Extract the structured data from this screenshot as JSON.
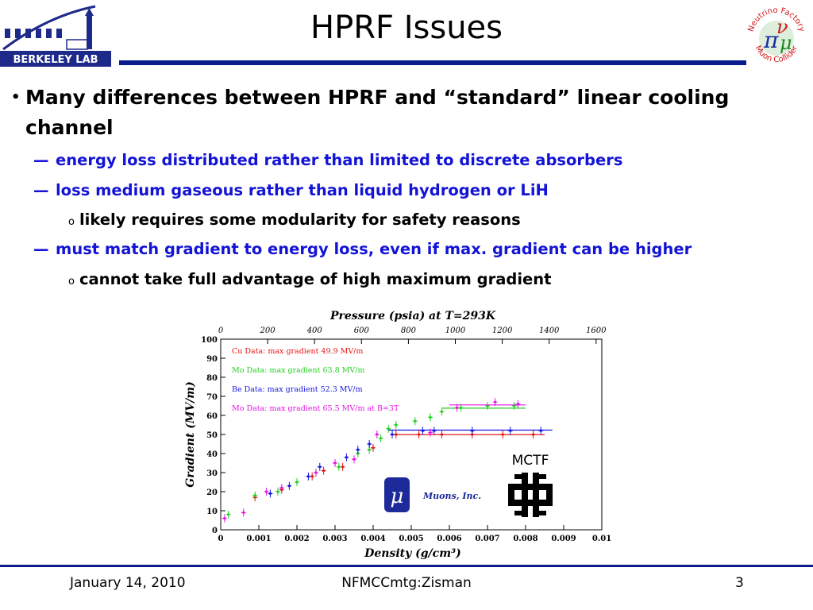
{
  "logos": {
    "left": {
      "text": "BERKELEY LAB",
      "icon": "berkeley-lab-logo-icon"
    },
    "right": {
      "text_top": "Neutrino Factory",
      "text_bottom": "Muon Collider",
      "icon": "nfmcc-logo-icon"
    }
  },
  "slide": {
    "title": "HPRF Issues",
    "bullet_main": "Many differences between HPRF and “standard” linear cooling channel",
    "sub1": "energy loss distributed rather than limited to discrete absorbers",
    "sub2": "loss medium gaseous rather than liquid hydrogen or LiH",
    "sub2a": "likely requires some modularity for safety reasons",
    "sub3": "must match gradient to energy loss, even if max. gradient can be higher",
    "sub3a": "cannot take full advantage of high maximum gradient",
    "dash": "—",
    "circle": "o",
    "bullet": "•"
  },
  "figure": {
    "mctf_label": "MCTF",
    "muons_label": "Muons, Inc.",
    "mu_symbol": "μ"
  },
  "footer": {
    "date": "January 14, 2010",
    "center": "NFMCCmtg:Zisman",
    "page": "3"
  },
  "colors": {
    "title_rule": "#0b1c8c",
    "subbullet": "#1313d6"
  },
  "chart_data": {
    "type": "scatter",
    "title": "Pressure (psia) at T=293K",
    "xlabel": "Density (g/cm³)",
    "ylabel": "Gradient (MV/m)",
    "top_axis_ticks": [
      "0",
      "200",
      "400",
      "600",
      "800",
      "1000",
      "1200",
      "1400",
      "1600"
    ],
    "x_ticks": [
      "0",
      "0.001",
      "0.002",
      "0.003",
      "0.004",
      "0.005",
      "0.006",
      "0.007",
      "0.008",
      "0.009",
      "0.01"
    ],
    "y_ticks": [
      "0",
      "10",
      "20",
      "30",
      "40",
      "50",
      "60",
      "70",
      "80",
      "90",
      "100"
    ],
    "xlim": [
      0,
      0.01
    ],
    "ylim": [
      0,
      100
    ],
    "legend": [
      {
        "text": "Cu Data: max gradient 49.9 MV/m",
        "color": "#e81414"
      },
      {
        "text": "Mo Data: max gradient 63.8 MV/m",
        "color": "#1fd11f"
      },
      {
        "text": "Be Data: max gradient 52.3 MV/m",
        "color": "#1414e0"
      },
      {
        "text": "Mo Data: max gradient 65.5 MV/m at B=3T",
        "color": "#e414e4"
      }
    ],
    "series": [
      {
        "name": "Cu Data: max gradient 49.9 MV/m",
        "color": "#e81414",
        "points": [
          [
            0.0009,
            17
          ],
          [
            0.0016,
            21
          ],
          [
            0.0024,
            28
          ],
          [
            0.0027,
            31
          ],
          [
            0.0032,
            33
          ],
          [
            0.004,
            43
          ],
          [
            0.0046,
            50
          ],
          [
            0.0052,
            50
          ],
          [
            0.0058,
            50
          ],
          [
            0.0066,
            50
          ],
          [
            0.0074,
            50
          ],
          [
            0.0082,
            50
          ]
        ],
        "flat": {
          "x0": 0.0045,
          "x1": 0.0085,
          "y": 49.9
        }
      },
      {
        "name": "Mo Data: max gradient 63.8 MV/m",
        "color": "#1fd11f",
        "points": [
          [
            0.0002,
            8
          ],
          [
            0.0009,
            18
          ],
          [
            0.0015,
            20
          ],
          [
            0.002,
            25
          ],
          [
            0.0025,
            30
          ],
          [
            0.0031,
            33
          ],
          [
            0.0036,
            40
          ],
          [
            0.0039,
            42
          ],
          [
            0.0042,
            48
          ],
          [
            0.0044,
            53
          ],
          [
            0.0046,
            55
          ],
          [
            0.0051,
            57
          ],
          [
            0.0055,
            59
          ],
          [
            0.0058,
            62
          ],
          [
            0.0063,
            64
          ],
          [
            0.007,
            65
          ],
          [
            0.0077,
            65
          ]
        ],
        "flat": {
          "x0": 0.0058,
          "x1": 0.008,
          "y": 63.8
        }
      },
      {
        "name": "Be Data: max gradient 52.3 MV/m",
        "color": "#1414e0",
        "points": [
          [
            0.0013,
            19
          ],
          [
            0.0018,
            23
          ],
          [
            0.0023,
            28
          ],
          [
            0.0026,
            33
          ],
          [
            0.0033,
            38
          ],
          [
            0.0036,
            42
          ],
          [
            0.0039,
            45
          ],
          [
            0.0045,
            50
          ],
          [
            0.0053,
            52
          ],
          [
            0.0056,
            52
          ],
          [
            0.0066,
            52
          ],
          [
            0.0076,
            52
          ],
          [
            0.0084,
            52
          ]
        ],
        "flat": {
          "x0": 0.0044,
          "x1": 0.0087,
          "y": 52.3
        }
      },
      {
        "name": "Mo Data: max gradient 65.5 MV/m at B=3T",
        "color": "#e414e4",
        "points": [
          [
            0.0001,
            6
          ],
          [
            0.0006,
            9
          ],
          [
            0.0012,
            20
          ],
          [
            0.0016,
            22
          ],
          [
            0.0025,
            30
          ],
          [
            0.003,
            35
          ],
          [
            0.0035,
            37
          ],
          [
            0.0041,
            50
          ],
          [
            0.0055,
            51
          ],
          [
            0.0062,
            64
          ],
          [
            0.0072,
            67
          ],
          [
            0.0078,
            66
          ]
        ],
        "flat": {
          "x0": 0.006,
          "x1": 0.008,
          "y": 65.5
        }
      }
    ]
  }
}
